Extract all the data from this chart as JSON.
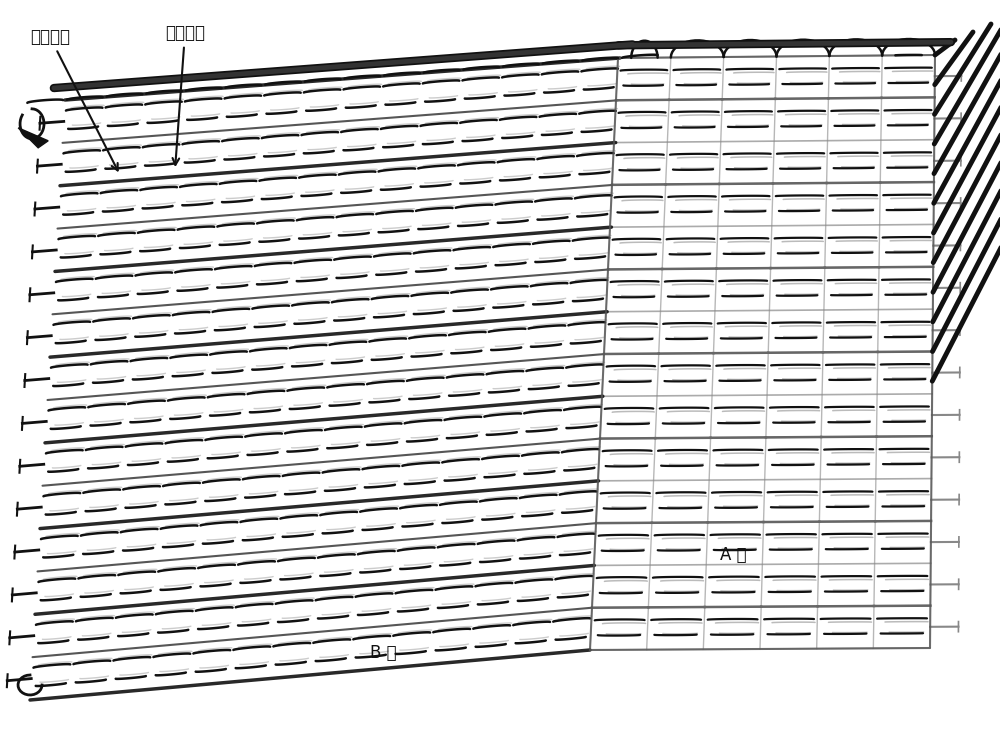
{
  "label1": "第一纱线",
  "label2": "第二纱线",
  "label_A": "A 区",
  "label_B": "B 区",
  "bg_color": "#ffffff",
  "dark_color": "#111111",
  "gray_color": "#999999",
  "light_gray": "#cccccc",
  "fig_width": 10.0,
  "fig_height": 7.48,
  "dpi": 100,
  "font_size": 12
}
